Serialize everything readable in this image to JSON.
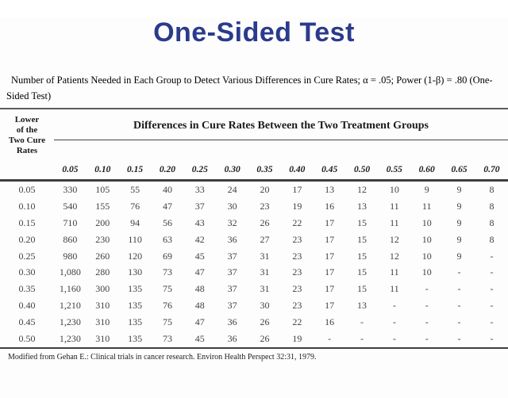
{
  "slide": {
    "title": "One-Sided Test",
    "subtitle": "Number of Patients Needed in Each Group to Detect Various Differences in Cure Rates; α = .05; Power (1-β) = .80 (One-Sided Test)",
    "footnote": "Modified from Gehan E.: Clinical trials in cancer research. Environ Health Perspect 32:31, 1979.",
    "accent_color": "#2b3b8c"
  },
  "chart_data": {
    "type": "table",
    "title": "Number of Patients Needed in Each Group to Detect Various Differences in Cure Rates; α = .05; Power (1-β) = .80 (One-Sided Test)",
    "row_header_lines": [
      "Lower",
      "of the",
      "Two Cure",
      "Rates"
    ],
    "row_header": "Lower of the Two Cure Rates",
    "span_header": "Differences in Cure Rates Between the Two Treatment Groups",
    "columns": [
      "0.05",
      "0.10",
      "0.15",
      "0.20",
      "0.25",
      "0.30",
      "0.35",
      "0.40",
      "0.45",
      "0.50",
      "0.55",
      "0.60",
      "0.65",
      "0.70"
    ],
    "rows": [
      {
        "label": "0.05",
        "values": [
          "330",
          "105",
          "55",
          "40",
          "33",
          "24",
          "20",
          "17",
          "13",
          "12",
          "10",
          "9",
          "9",
          "8"
        ]
      },
      {
        "label": "0.10",
        "values": [
          "540",
          "155",
          "76",
          "47",
          "37",
          "30",
          "23",
          "19",
          "16",
          "13",
          "11",
          "11",
          "9",
          "8"
        ]
      },
      {
        "label": "0.15",
        "values": [
          "710",
          "200",
          "94",
          "56",
          "43",
          "32",
          "26",
          "22",
          "17",
          "15",
          "11",
          "10",
          "9",
          "8"
        ]
      },
      {
        "label": "0.20",
        "values": [
          "860",
          "230",
          "110",
          "63",
          "42",
          "36",
          "27",
          "23",
          "17",
          "15",
          "12",
          "10",
          "9",
          "8"
        ]
      },
      {
        "label": "0.25",
        "values": [
          "980",
          "260",
          "120",
          "69",
          "45",
          "37",
          "31",
          "23",
          "17",
          "15",
          "12",
          "10",
          "9",
          "-"
        ]
      },
      {
        "label": "0.30",
        "values": [
          "1,080",
          "280",
          "130",
          "73",
          "47",
          "37",
          "31",
          "23",
          "17",
          "15",
          "11",
          "10",
          "-",
          "-"
        ]
      },
      {
        "label": "0.35",
        "values": [
          "1,160",
          "300",
          "135",
          "75",
          "48",
          "37",
          "31",
          "23",
          "17",
          "15",
          "11",
          "-",
          "-",
          "-"
        ]
      },
      {
        "label": "0.40",
        "values": [
          "1,210",
          "310",
          "135",
          "76",
          "48",
          "37",
          "30",
          "23",
          "17",
          "13",
          "-",
          "-",
          "-",
          "-"
        ]
      },
      {
        "label": "0.45",
        "values": [
          "1,230",
          "310",
          "135",
          "75",
          "47",
          "36",
          "26",
          "22",
          "16",
          "-",
          "-",
          "-",
          "-",
          "-"
        ]
      },
      {
        "label": "0.50",
        "values": [
          "1,230",
          "310",
          "135",
          "73",
          "45",
          "36",
          "26",
          "19",
          "-",
          "-",
          "-",
          "-",
          "-",
          "-"
        ]
      }
    ]
  }
}
